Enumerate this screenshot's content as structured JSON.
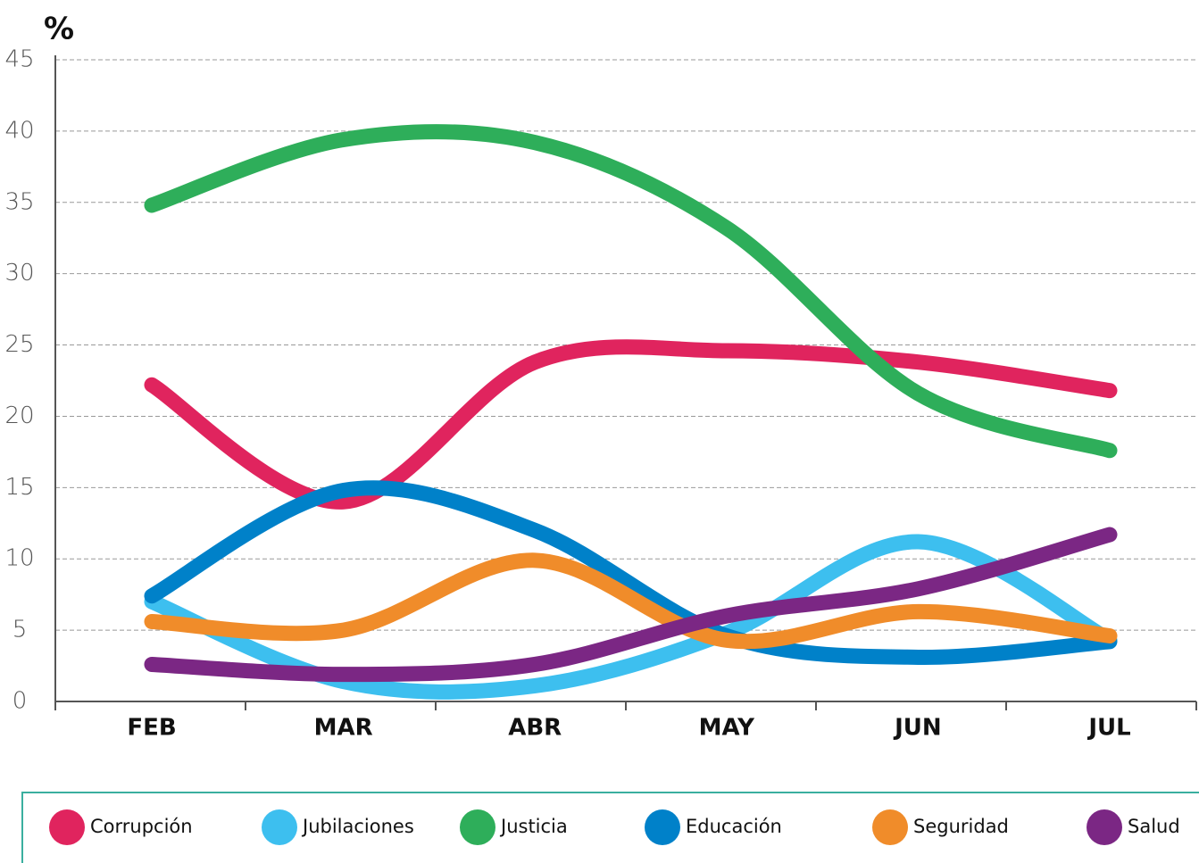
{
  "chart_data": {
    "type": "line",
    "ylabel": "%",
    "categories": [
      "FEB",
      "MAR",
      "ABR",
      "MAY",
      "JUN",
      "JUL"
    ],
    "series": [
      {
        "name": "Corrupción",
        "color": "#e0245e",
        "values": [
          22.2,
          14,
          23.8,
          24.6,
          23.8,
          21.8
        ]
      },
      {
        "name": "Jubilaciones",
        "color": "#3dbfef",
        "values": [
          7,
          1.4,
          1.1,
          4.8,
          11.2,
          4.3
        ]
      },
      {
        "name": "Justicia",
        "color": "#2eae5a",
        "values": [
          34.8,
          39.4,
          39.2,
          33.2,
          21.6,
          17.6
        ]
      },
      {
        "name": "Educación",
        "color": "#0081c9",
        "values": [
          7.4,
          14.8,
          12,
          4.6,
          3.1,
          4.2
        ]
      },
      {
        "name": "Seguridad",
        "color": "#f08c2a",
        "values": [
          5.6,
          5,
          9.9,
          4.3,
          6.3,
          4.6
        ]
      },
      {
        "name": "Salud",
        "color": "#7b2784",
        "values": [
          2.6,
          1.9,
          2.6,
          6,
          7.9,
          11.7
        ]
      }
    ],
    "ylim": [
      0,
      45
    ],
    "yticks": [
      0,
      5,
      10,
      15,
      20,
      25,
      30,
      35,
      40,
      45
    ],
    "grid": true
  }
}
